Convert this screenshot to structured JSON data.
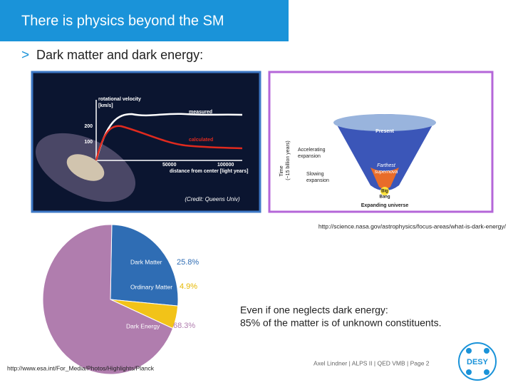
{
  "header": {
    "title": "There is physics beyond the SM"
  },
  "bullet": {
    "marker": ">",
    "text": "Dark matter and dark energy:"
  },
  "rotation_image": {
    "y_label_1": "rotational velocity",
    "y_label_2": "[km/s]",
    "measured": "measured",
    "calculated": "calculated",
    "tick_200": "200",
    "tick_100": "100",
    "tick_50000": "50000",
    "tick_100000": "100000",
    "x_label": "distance from center [light years]",
    "credit": "(Credit: Queens Univ)"
  },
  "universe_image": {
    "present": "Present",
    "accelerating": "Accelerating",
    "expansion_1": "expansion",
    "time_1": "Time",
    "time_2": "(~15 billion years)",
    "farthest": "Farthest",
    "supernova": "supernova",
    "slowing": "Slowing",
    "expansion_2": "expansion",
    "big": "Big",
    "bang": "Bang",
    "expanding": "Expanding universe"
  },
  "universe_url": "http://science.nasa.gov/astrophysics/focus-areas/what-is-dark-energy/",
  "pie": {
    "slices": [
      {
        "label": "Dark Matter",
        "value": 25.8,
        "value_label": "25.8%",
        "color": "#2f6db4"
      },
      {
        "label": "Ordinary Matter",
        "value": 4.9,
        "value_label": "4.9%",
        "color": "#f2c318"
      },
      {
        "label": "Dark Energy",
        "value": 68.3,
        "value_label": "68.3%",
        "color": "#b07dae"
      }
    ]
  },
  "note": {
    "line1": "Even if one neglects dark energy:",
    "line2": "85% of the matter is of unknown constituents."
  },
  "pie_url": "http://www.esa.int/For_Media/Photos/Highlights/Planck",
  "footer": {
    "text": "Axel Lindner | ALPS II | QED VMB | Page 2",
    "logo": "DESY"
  }
}
